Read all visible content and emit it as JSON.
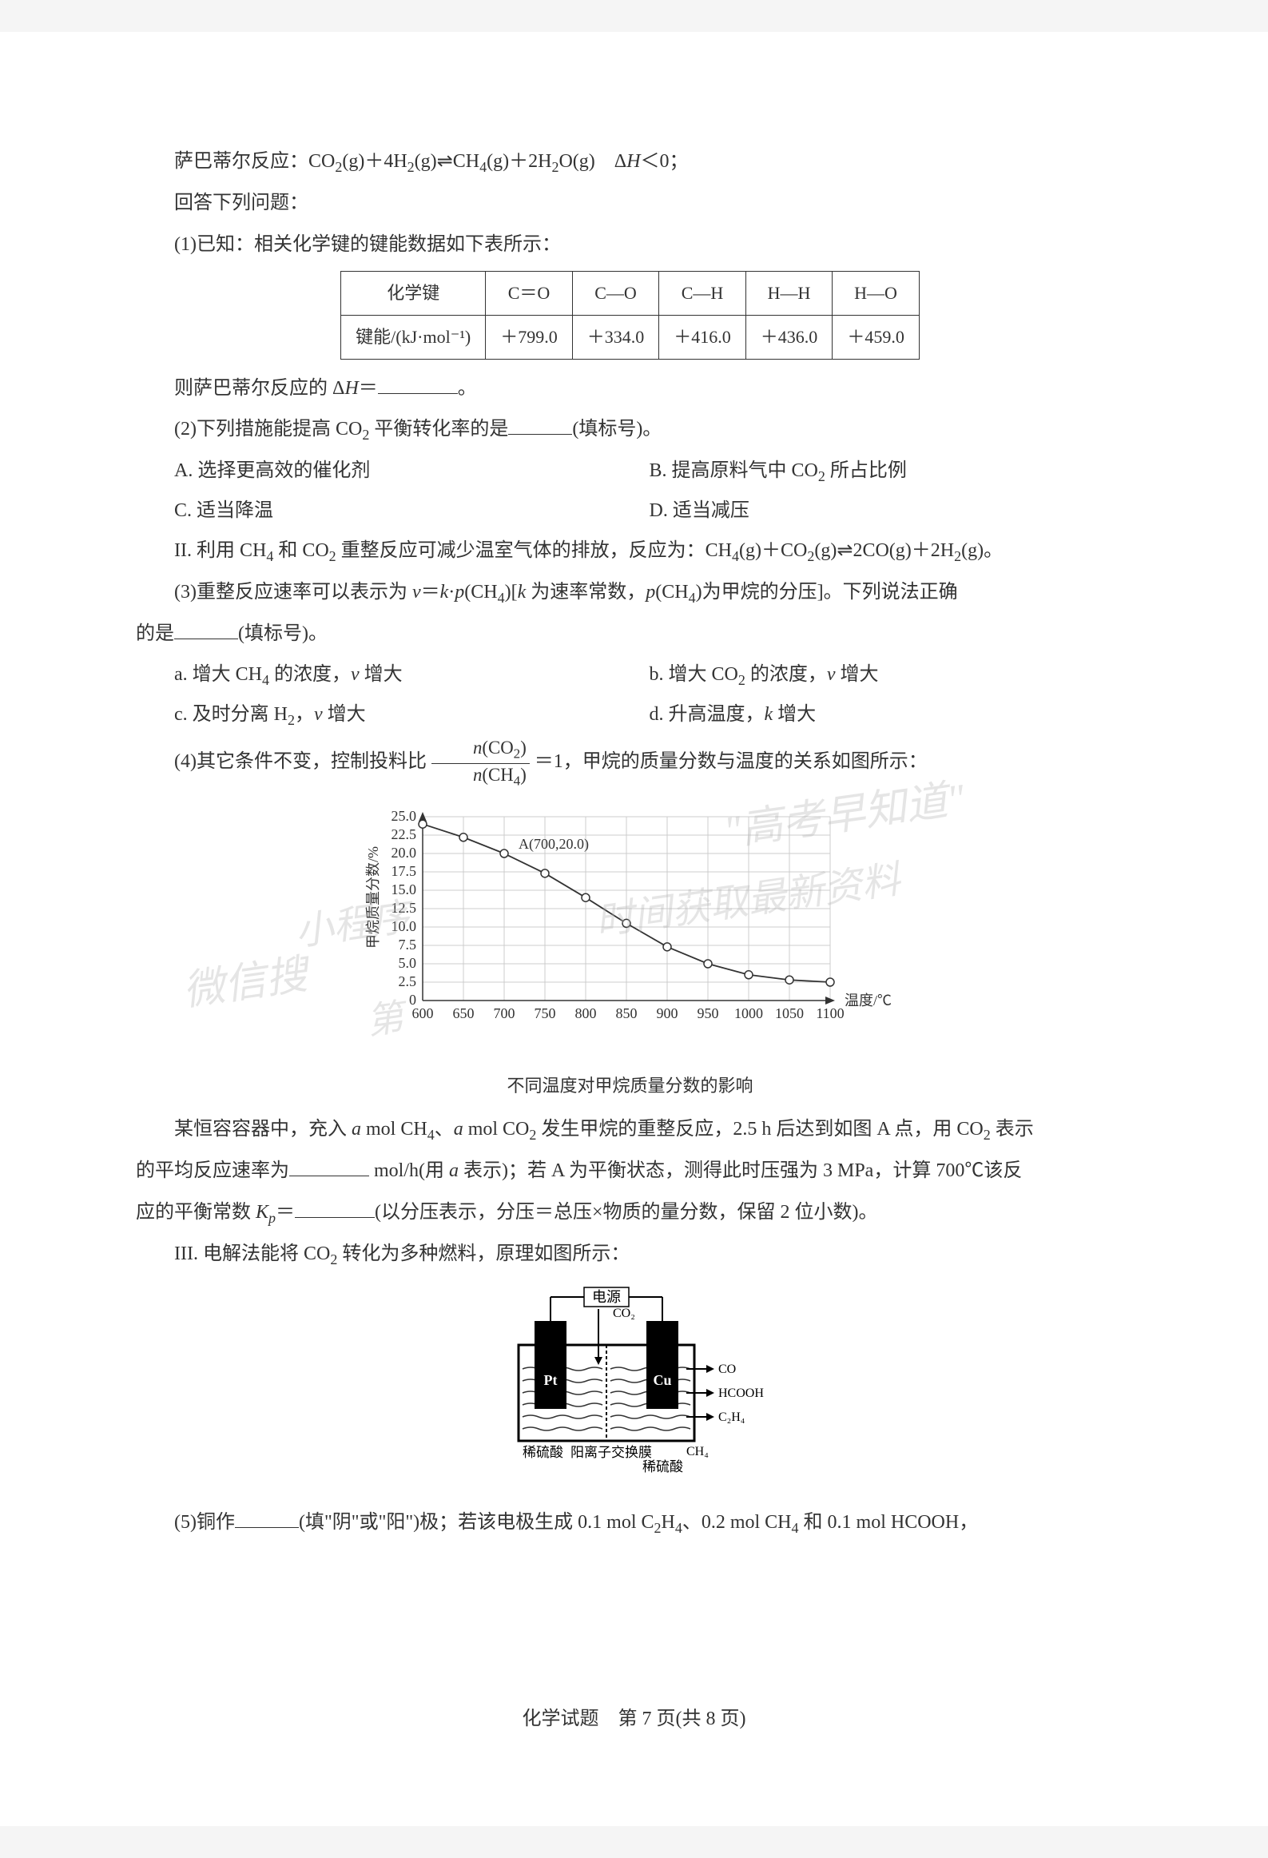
{
  "header": {
    "line1_pre": "萨巴蒂尔反应：CO",
    "line1_mid": "(g)＋4H",
    "line1_mid2": "(g)⇌CH",
    "line1_mid3": "(g)＋2H",
    "line1_end": "O(g)　Δ",
    "line1_H": "H",
    "line1_lt": "＜0；",
    "line2": "回答下列问题："
  },
  "q1": {
    "intro": "(1)已知：相关化学键的键能数据如下表所示：",
    "table": {
      "header_label": "化学键",
      "energy_label": "键能/(kJ·mol⁻¹)",
      "columns": [
        "C＝O",
        "C—O",
        "C—H",
        "H—H",
        "H—O"
      ],
      "values": [
        "＋799.0",
        "＋334.0",
        "＋416.0",
        "＋436.0",
        "＋459.0"
      ]
    },
    "after": "则萨巴蒂尔反应的 Δ",
    "after_H": "H",
    "after_eq": "＝",
    "after_end": "。"
  },
  "q2": {
    "intro_pre": "(2)下列措施能提高 CO",
    "intro_post": " 平衡转化率的是",
    "intro_end": "(填标号)。",
    "options": {
      "A": "A. 选择更高效的催化剂",
      "B_pre": "B. 提高原料气中 CO",
      "B_post": " 所占比例",
      "C": "C. 适当降温",
      "D": "D. 适当减压"
    }
  },
  "section2": {
    "intro_pre": "II. 利用 CH",
    "intro_mid1": " 和 CO",
    "intro_mid2": " 重整反应可减少温室气体的排放，反应为：CH",
    "intro_mid3": "(g)＋CO",
    "intro_mid4": "(g)⇌2CO(g)＋2H",
    "intro_end": "(g)。"
  },
  "q3": {
    "intro_pre": "(3)重整反应速率可以表示为 ",
    "intro_v": "v",
    "intro_eq": "＝",
    "intro_k": "k",
    "intro_dot": "·",
    "intro_p": "p",
    "intro_ch4_pre": "(CH",
    "intro_ch4_post": ")[",
    "intro_k2": "k",
    "intro_mid": " 为速率常数，",
    "intro_p2": "p",
    "intro_ch4b_pre": "(CH",
    "intro_ch4b_post": ")为甲烷的分压]。下列说法正确",
    "line2_pre": "的是",
    "line2_end": "(填标号)。",
    "options": {
      "a_pre": "a. 增大 CH",
      "a_mid": " 的浓度，",
      "a_v": "v",
      "a_end": " 增大",
      "b_pre": "b. 增大 CO",
      "b_mid": " 的浓度，",
      "b_v": "v",
      "b_end": " 增大",
      "c_pre": "c. 及时分离 H",
      "c_mid": "，",
      "c_v": "v",
      "c_end": " 增大",
      "d_pre": "d. 升高温度，",
      "d_k": "k",
      "d_end": " 增大"
    }
  },
  "q4": {
    "intro_pre": "(4)其它条件不变，控制投料比",
    "frac_num_pre": "n",
    "frac_num_co2_pre": "(CO",
    "frac_num_co2_post": ")",
    "frac_den_pre": "n",
    "frac_den_ch4_pre": "(CH",
    "frac_den_ch4_post": ")",
    "intro_post": "＝1，甲烷的质量分数与温度的关系如图所示：",
    "chart": {
      "type": "line",
      "x_label": "温度/℃",
      "y_label": "甲烷质量分数/%",
      "caption": "不同温度对甲烷质量分数的影响",
      "point_label": "A(700,20.0)",
      "x_ticks": [
        "600",
        "650",
        "700",
        "750",
        "800",
        "850",
        "900",
        "950",
        "1000",
        "1050",
        "1100"
      ],
      "y_ticks": [
        "0",
        "2.5",
        "5.0",
        "7.5",
        "10.0",
        "12.5",
        "15.0",
        "17.5",
        "20.0",
        "22.5",
        "25.0"
      ],
      "x_range": [
        600,
        1100
      ],
      "y_range": [
        0,
        25
      ],
      "data_points": [
        {
          "x": 600,
          "y": 24.0
        },
        {
          "x": 650,
          "y": 22.2
        },
        {
          "x": 700,
          "y": 20.0
        },
        {
          "x": 750,
          "y": 17.3
        },
        {
          "x": 800,
          "y": 14.0
        },
        {
          "x": 850,
          "y": 10.5
        },
        {
          "x": 900,
          "y": 7.3
        },
        {
          "x": 950,
          "y": 5.0
        },
        {
          "x": 1000,
          "y": 3.5
        },
        {
          "x": 1050,
          "y": 2.8
        },
        {
          "x": 1100,
          "y": 2.5
        }
      ],
      "grid_color": "#cccccc",
      "line_color": "#333333",
      "marker_color": "#ffffff",
      "marker_stroke": "#333333",
      "background": "#ffffff",
      "axis_color": "#333333",
      "font_size": 18
    },
    "body_pre": "某恒容容器中，充入 ",
    "body_a1": "a",
    "body_mid1": " mol CH",
    "body_mid2": "、",
    "body_a2": "a",
    "body_mid3": " mol CO",
    "body_mid4": " 发生甲烷的重整反应，2.5 h 后达到如图 A 点，用 CO",
    "body_mid5": " 表示",
    "body2_pre": "的平均反应速率为",
    "body2_unit": " mol/h(用 ",
    "body2_a": "a",
    "body2_mid": " 表示)；若 A 为平衡状态，测得此时压强为 3 MPa，计算 700℃该反",
    "body3_pre": "应的平衡常数 ",
    "body3_K": "K",
    "body3_p": "p",
    "body3_eq": "＝",
    "body3_end": "(以分压表示，分压＝总压×物质的量分数，保留 2 位小数)。"
  },
  "section3": {
    "intro_pre": "III. 电解法能将 CO",
    "intro_end": " 转化为多种燃料，原理如图所示：",
    "diagram": {
      "power_label": "电源",
      "co2_label": "CO₂",
      "pt_label": "Pt",
      "cu_label": "Cu",
      "left_liquid": "稀硫酸",
      "membrane": "阳离子交换膜",
      "right_liquid": "稀硫酸",
      "products": [
        "CO",
        "HCOOH",
        "C₂H₄"
      ],
      "ch4_label": "CH₄",
      "colors": {
        "electrode": "#000000",
        "cell_border": "#000000",
        "liquid_pattern": "#333333",
        "background": "#ffffff"
      }
    }
  },
  "q5": {
    "pre": "(5)铜作",
    "mid1": "(填\"阴\"或\"阳\")极；若该电极生成 0.1 mol C",
    "mid2": "H",
    "mid3": "、0.2 mol CH",
    "mid4": " 和 0.1 mol HCOOH，"
  },
  "footer": "化学试题　第 7 页(共 8 页)",
  "watermarks": {
    "w1": "\"高考早知道\"",
    "w2": "小程序",
    "w3": "微信搜",
    "w4": "时间获取最新资料",
    "w5": "第"
  }
}
